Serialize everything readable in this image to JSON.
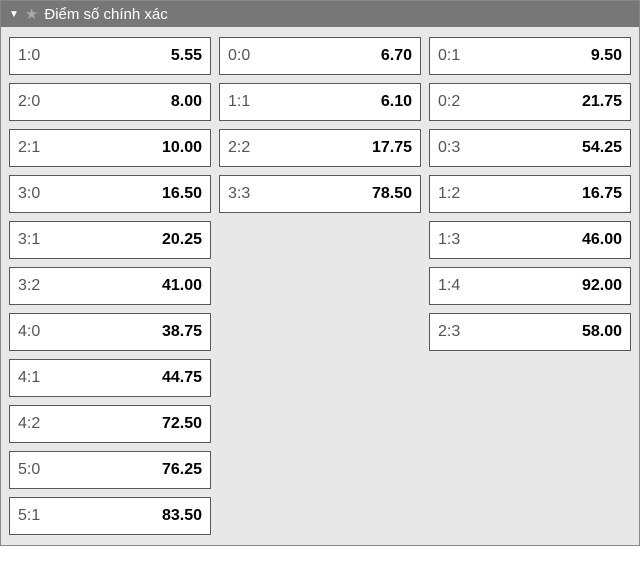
{
  "header": {
    "title": "Điểm số chính xác"
  },
  "columns": [
    [
      {
        "score": "1:0",
        "odds": "5.55"
      },
      {
        "score": "2:0",
        "odds": "8.00"
      },
      {
        "score": "2:1",
        "odds": "10.00"
      },
      {
        "score": "3:0",
        "odds": "16.50"
      },
      {
        "score": "3:1",
        "odds": "20.25"
      },
      {
        "score": "3:2",
        "odds": "41.00"
      },
      {
        "score": "4:0",
        "odds": "38.75"
      },
      {
        "score": "4:1",
        "odds": "44.75"
      },
      {
        "score": "4:2",
        "odds": "72.50"
      },
      {
        "score": "5:0",
        "odds": "76.25"
      },
      {
        "score": "5:1",
        "odds": "83.50"
      }
    ],
    [
      {
        "score": "0:0",
        "odds": "6.70"
      },
      {
        "score": "1:1",
        "odds": "6.10"
      },
      {
        "score": "2:2",
        "odds": "17.75"
      },
      {
        "score": "3:3",
        "odds": "78.50"
      }
    ],
    [
      {
        "score": "0:1",
        "odds": "9.50"
      },
      {
        "score": "0:2",
        "odds": "21.75"
      },
      {
        "score": "0:3",
        "odds": "54.25"
      },
      {
        "score": "1:2",
        "odds": "16.75"
      },
      {
        "score": "1:3",
        "odds": "46.00"
      },
      {
        "score": "1:4",
        "odds": "92.00"
      },
      {
        "score": "2:3",
        "odds": "58.00"
      }
    ]
  ]
}
